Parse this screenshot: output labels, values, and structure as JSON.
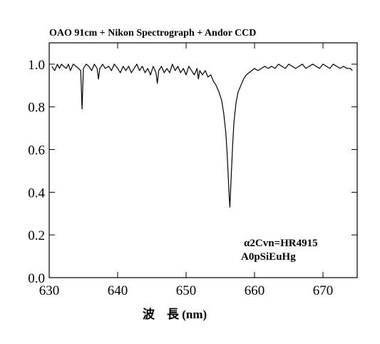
{
  "chart_data": {
    "type": "line",
    "title": "OAO 91cm + Nikon Spectrograph + Andor CCD",
    "xlabel": "波　長 (nm)",
    "ylabel": "",
    "xlim": [
      630,
      675
    ],
    "ylim": [
      0.0,
      1.1
    ],
    "xticks": [
      630,
      640,
      650,
      660,
      670
    ],
    "yticks": [
      0.0,
      0.2,
      0.4,
      0.6,
      0.8,
      1.0
    ],
    "ytick_labels": [
      "0.0",
      "0.2",
      "0.4",
      "0.6",
      "0.8",
      "1.0"
    ],
    "grid": false,
    "annotations": [
      "α2Cvn=HR4915",
      "A0pSiEuHg"
    ],
    "series": [
      {
        "color": "#000000",
        "x": [
          630.4,
          630.8,
          631.2,
          631.5,
          631.8,
          632.1,
          632.5,
          632.8,
          633.1,
          633.5,
          633.9,
          634.3,
          634.6,
          634.8,
          635.0,
          635.4,
          635.8,
          636.2,
          636.6,
          637.0,
          637.2,
          637.4,
          637.8,
          638.2,
          638.7,
          639.1,
          639.5,
          640.0,
          640.4,
          640.8,
          641.2,
          641.6,
          642.0,
          642.4,
          642.8,
          643.2,
          643.6,
          644.0,
          644.4,
          644.8,
          645.2,
          645.6,
          645.8,
          646.0,
          646.4,
          646.8,
          647.2,
          647.6,
          648.0,
          648.4,
          648.8,
          649.2,
          649.6,
          650.0,
          650.4,
          650.8,
          651.2,
          651.6,
          651.8,
          652.0,
          652.4,
          652.8,
          653.2,
          653.6,
          654.0,
          654.4,
          654.8,
          655.2,
          655.5,
          655.8,
          656.0,
          656.2,
          656.3,
          656.4,
          656.6,
          656.8,
          657.0,
          657.3,
          657.6,
          658.0,
          658.4,
          658.8,
          659.2,
          659.6,
          660.0,
          660.5,
          661.0,
          661.5,
          662.0,
          662.5,
          663.0,
          663.5,
          664.0,
          664.5,
          665.0,
          665.5,
          666.0,
          666.5,
          667.0,
          667.5,
          668.0,
          668.5,
          669.0,
          669.5,
          670.0,
          670.5,
          671.0,
          671.5,
          672.0,
          672.5,
          673.0,
          673.5,
          674.0,
          674.3
        ],
        "values": [
          0.99,
          0.97,
          1.0,
          0.98,
          1.0,
          0.99,
          0.98,
          1.0,
          0.97,
          1.0,
          0.99,
          0.98,
          0.97,
          0.79,
          0.98,
          1.0,
          0.99,
          0.97,
          1.0,
          0.98,
          0.93,
          0.98,
          1.0,
          0.98,
          0.99,
          0.97,
          1.0,
          0.98,
          0.96,
          0.99,
          0.97,
          0.99,
          0.96,
          0.98,
          1.0,
          0.97,
          0.99,
          0.96,
          0.98,
          0.95,
          0.99,
          0.96,
          0.91,
          0.97,
          0.99,
          0.96,
          0.98,
          0.96,
          1.0,
          0.97,
          0.99,
          0.96,
          0.98,
          0.95,
          0.99,
          0.97,
          0.95,
          0.98,
          0.93,
          0.97,
          0.95,
          0.97,
          0.94,
          0.95,
          0.92,
          0.9,
          0.87,
          0.83,
          0.77,
          0.68,
          0.58,
          0.45,
          0.38,
          0.33,
          0.48,
          0.62,
          0.73,
          0.82,
          0.87,
          0.9,
          0.93,
          0.95,
          0.96,
          0.97,
          0.98,
          0.97,
          0.98,
          0.99,
          0.98,
          0.99,
          0.98,
          1.0,
          0.99,
          0.98,
          1.0,
          0.99,
          0.98,
          0.99,
          1.0,
          0.98,
          0.99,
          1.0,
          0.99,
          0.98,
          1.0,
          0.99,
          0.98,
          1.0,
          0.99,
          0.98,
          0.99,
          0.98,
          0.98,
          0.97
        ]
      }
    ]
  }
}
